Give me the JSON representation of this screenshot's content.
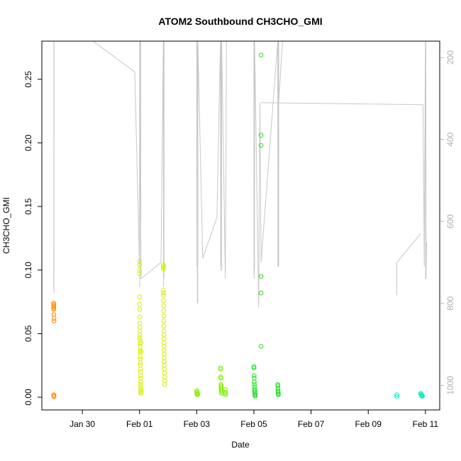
{
  "chart_data": {
    "type": "scatter",
    "title": "ATOM2 Southbound CH3CHO_GMI",
    "xlabel": "Date",
    "ylabel": "CH3CHO_GMI",
    "xlim": [
      "2017-01-28T14:00",
      "2017-02-11T12:00"
    ],
    "ylim": [
      -0.01,
      0.28
    ],
    "x_ticks": [
      {
        "date": "2017-01-30",
        "label": "Jan 30"
      },
      {
        "date": "2017-02-01",
        "label": "Feb 01"
      },
      {
        "date": "2017-02-03",
        "label": "Feb 03"
      },
      {
        "date": "2017-02-05",
        "label": "Feb 05"
      },
      {
        "date": "2017-02-07",
        "label": "Feb 07"
      },
      {
        "date": "2017-02-09",
        "label": "Feb 09"
      },
      {
        "date": "2017-02-11",
        "label": "Feb 11"
      }
    ],
    "y_ticks": [
      {
        "value": 0.0,
        "label": "0.00"
      },
      {
        "value": 0.05,
        "label": "0.05"
      },
      {
        "value": 0.1,
        "label": "0.10"
      },
      {
        "value": 0.15,
        "label": "0.15"
      },
      {
        "value": 0.2,
        "label": "0.20"
      },
      {
        "value": 0.25,
        "label": "0.25"
      }
    ],
    "right_axis": {
      "color": "#b0b0b0",
      "ylim_inverted": [
        1060,
        160
      ],
      "ticks": [
        {
          "value": 200,
          "label": "200"
        },
        {
          "value": 400,
          "label": "400"
        },
        {
          "value": 600,
          "label": "600"
        },
        {
          "value": 800,
          "label": "800"
        },
        {
          "value": 1000,
          "label": "1000"
        }
      ]
    },
    "pressure_trace": {
      "color": "#c8c8c8",
      "points": [
        [
          "2017-01-29T00:00",
          770
        ],
        [
          "2017-01-29T00:05",
          160
        ],
        [
          "2017-01-29T00:10",
          775
        ],
        [
          "2017-01-29T00:15",
          160
        ],
        [
          "2017-01-30T09:00",
          160
        ],
        [
          "2017-01-31T20:00",
          235
        ],
        [
          "2017-02-01T00:00",
          710
        ],
        [
          "2017-02-01T00:05",
          160
        ],
        [
          "2017-02-01T00:10",
          760
        ],
        [
          "2017-02-01T00:15",
          160
        ],
        [
          "2017-02-01T00:25",
          600
        ],
        [
          "2017-02-01T00:35",
          160
        ],
        [
          "2017-02-01T00:45",
          550
        ],
        [
          "2017-02-01T00:55",
          160
        ],
        [
          "2017-02-01T01:05",
          740
        ],
        [
          "2017-02-01T18:00",
          700
        ],
        [
          "2017-02-01T20:00",
          160
        ],
        [
          "2017-02-01T20:10",
          760
        ],
        [
          "2017-02-01T20:20",
          160
        ],
        [
          "2017-02-01T20:30",
          740
        ],
        [
          "2017-02-01T20:40",
          160
        ],
        [
          "2017-02-02T17:00",
          160
        ],
        [
          "2017-02-03T00:00",
          160
        ],
        [
          "2017-02-03T00:10",
          710
        ],
        [
          "2017-02-03T00:20",
          160
        ],
        [
          "2017-02-03T00:30",
          800
        ],
        [
          "2017-02-03T00:40",
          160
        ],
        [
          "2017-02-03T00:50",
          800
        ],
        [
          "2017-02-03T01:00",
          160
        ],
        [
          "2017-02-03T05:00",
          690
        ],
        [
          "2017-02-03T17:00",
          590
        ],
        [
          "2017-02-03T19:00",
          290
        ],
        [
          "2017-02-03T20:00",
          160
        ],
        [
          "2017-02-03T20:10",
          710
        ],
        [
          "2017-02-03T20:20",
          160
        ],
        [
          "2017-02-03T20:30",
          720
        ],
        [
          "2017-02-03T20:40",
          160
        ],
        [
          "2017-02-03T20:50",
          720
        ],
        [
          "2017-02-03T21:00",
          160
        ],
        [
          "2017-02-04T00:00",
          740
        ],
        [
          "2017-02-04T01:00",
          160
        ],
        [
          "2017-02-05T00:00",
          160
        ],
        [
          "2017-02-05T00:05",
          730
        ],
        [
          "2017-02-05T00:10",
          160
        ],
        [
          "2017-02-05T00:15",
          740
        ],
        [
          "2017-02-05T00:20",
          160
        ],
        [
          "2017-02-05T00:25",
          710
        ],
        [
          "2017-02-05T00:30",
          720
        ],
        [
          "2017-02-05T00:35",
          160
        ],
        [
          "2017-02-05T04:00",
          810
        ],
        [
          "2017-02-05T05:00",
          310
        ],
        [
          "2017-02-05T06:00",
          700
        ],
        [
          "2017-02-05T20:00",
          160
        ],
        [
          "2017-02-05T20:10",
          710
        ],
        [
          "2017-02-05T20:20",
          160
        ],
        [
          "2017-02-05T20:30",
          710
        ],
        [
          "2017-02-05T20:40",
          160
        ],
        [
          "2017-02-05T20:50",
          710
        ],
        [
          "2017-02-05T20:50",
          160
        ],
        [
          "2017-02-05T20:50",
          310
        ],
        [
          "2017-02-06T00:00",
          160
        ]
      ]
    },
    "pressure_trace_2": {
      "color": "#c8c8c8",
      "points": [
        [
          "2017-02-05T06:00",
          310
        ],
        [
          "2017-02-10T22:00",
          315
        ],
        [
          "2017-02-10T23:00",
          710
        ],
        [
          "2017-02-11T00:00",
          160
        ],
        [
          "2017-02-11T00:10",
          740
        ],
        [
          "2017-02-11T00:20",
          160
        ],
        [
          "2017-02-11T00:30",
          740
        ],
        [
          "2017-02-11T01:00",
          650
        ]
      ]
    },
    "pressure_trace_3": {
      "color": "#c8c8c8",
      "points": [
        [
          "2017-02-10T00:00",
          780
        ],
        [
          "2017-02-10T00:00",
          700
        ],
        [
          "2017-02-10T20:00",
          630
        ]
      ]
    },
    "series": [
      {
        "color": "#ff8c00",
        "points": [
          [
            "2017-01-29T00:00",
            0.074
          ],
          [
            "2017-01-29T00:00",
            0.073
          ],
          [
            "2017-01-29T00:00",
            0.072
          ],
          [
            "2017-01-29T00:00",
            0.071
          ],
          [
            "2017-01-29T00:00",
            0.07
          ],
          [
            "2017-01-29T00:05",
            0.069
          ],
          [
            "2017-01-29T00:05",
            0.065
          ],
          [
            "2017-01-29T00:10",
            0.062
          ],
          [
            "2017-01-29T00:10",
            0.06
          ],
          [
            "2017-01-29T00:00",
            0.002
          ],
          [
            "2017-01-29T00:05",
            0.001
          ],
          [
            "2017-01-29T00:10",
            0.0005
          ]
        ]
      },
      {
        "color": "#d4f000",
        "points": [
          [
            "2017-02-01T00:00",
            0.107
          ],
          [
            "2017-02-01T00:00",
            0.104
          ],
          [
            "2017-02-01T00:00",
            0.1
          ],
          [
            "2017-02-01T00:00",
            0.097
          ],
          [
            "2017-02-01T00:00",
            0.079
          ],
          [
            "2017-02-01T00:05",
            0.073
          ],
          [
            "2017-02-01T00:05",
            0.069
          ],
          [
            "2017-02-01T00:10",
            0.063
          ],
          [
            "2017-02-01T00:10",
            0.058
          ],
          [
            "2017-02-01T00:15",
            0.055
          ],
          [
            "2017-02-01T00:15",
            0.052
          ],
          [
            "2017-02-01T00:20",
            0.049
          ],
          [
            "2017-02-01T00:20",
            0.047
          ],
          [
            "2017-02-01T00:25",
            0.045
          ],
          [
            "2017-02-01T00:25",
            0.042
          ],
          [
            "2017-02-01T00:30",
            0.04
          ],
          [
            "2017-02-01T00:30",
            0.037
          ],
          [
            "2017-02-01T00:35",
            0.035
          ],
          [
            "2017-02-01T00:35",
            0.032
          ],
          [
            "2017-02-01T00:40",
            0.03
          ],
          [
            "2017-02-01T00:40",
            0.027
          ],
          [
            "2017-02-01T00:45",
            0.025
          ],
          [
            "2017-02-01T00:45",
            0.022
          ],
          [
            "2017-02-01T00:50",
            0.02
          ],
          [
            "2017-02-01T00:50",
            0.017
          ],
          [
            "2017-02-01T00:55",
            0.015
          ],
          [
            "2017-02-01T00:55",
            0.012
          ],
          [
            "2017-02-01T01:00",
            0.01
          ],
          [
            "2017-02-01T01:00",
            0.008
          ],
          [
            "2017-02-01T01:05",
            0.006
          ],
          [
            "2017-02-01T01:05",
            0.005
          ],
          [
            "2017-02-01T01:10",
            0.004
          ],
          [
            "2017-02-01T01:10",
            0.003
          ],
          [
            "2017-02-01T01:15",
            0.043
          ],
          [
            "2017-02-01T01:15",
            0.036
          ],
          [
            "2017-02-01T20:00",
            0.104
          ],
          [
            "2017-02-01T20:00",
            0.103
          ],
          [
            "2017-02-01T20:05",
            0.102
          ],
          [
            "2017-02-01T20:05",
            0.101
          ],
          [
            "2017-02-01T20:00",
            0.084
          ],
          [
            "2017-02-01T20:05",
            0.082
          ],
          [
            "2017-02-01T20:10",
            0.08
          ],
          [
            "2017-02-01T20:10",
            0.076
          ],
          [
            "2017-02-01T20:15",
            0.072
          ],
          [
            "2017-02-01T20:15",
            0.068
          ],
          [
            "2017-02-01T20:20",
            0.064
          ],
          [
            "2017-02-01T20:20",
            0.06
          ],
          [
            "2017-02-01T20:25",
            0.056
          ],
          [
            "2017-02-01T20:25",
            0.052
          ],
          [
            "2017-02-01T20:30",
            0.049
          ],
          [
            "2017-02-01T20:30",
            0.046
          ],
          [
            "2017-02-01T20:35",
            0.043
          ],
          [
            "2017-02-01T20:35",
            0.04
          ],
          [
            "2017-02-01T20:40",
            0.037
          ],
          [
            "2017-02-01T20:40",
            0.034
          ],
          [
            "2017-02-01T20:45",
            0.031
          ],
          [
            "2017-02-01T20:45",
            0.028
          ],
          [
            "2017-02-01T20:50",
            0.025
          ],
          [
            "2017-02-01T20:50",
            0.022
          ],
          [
            "2017-02-01T20:55",
            0.019
          ],
          [
            "2017-02-01T20:55",
            0.016
          ],
          [
            "2017-02-01T21:00",
            0.013
          ],
          [
            "2017-02-01T21:00",
            0.01
          ]
        ]
      },
      {
        "color": "#80f000",
        "points": [
          [
            "2017-02-03T00:00",
            0.005
          ],
          [
            "2017-02-03T00:05",
            0.004
          ],
          [
            "2017-02-03T00:10",
            0.004
          ],
          [
            "2017-02-03T00:15",
            0.003
          ],
          [
            "2017-02-03T00:20",
            0.003
          ],
          [
            "2017-02-03T00:25",
            0.002
          ],
          [
            "2017-02-03T00:30",
            0.002
          ],
          [
            "2017-02-03T00:35",
            0.003
          ],
          [
            "2017-02-03T00:40",
            0.002
          ],
          [
            "2017-02-03T00:45",
            0.003
          ],
          [
            "2017-02-03T20:00",
            0.023
          ],
          [
            "2017-02-03T20:05",
            0.022
          ],
          [
            "2017-02-03T20:10",
            0.016
          ],
          [
            "2017-02-03T20:15",
            0.015
          ],
          [
            "2017-02-03T20:20",
            0.01
          ],
          [
            "2017-02-03T20:25",
            0.009
          ],
          [
            "2017-02-03T20:30",
            0.008
          ],
          [
            "2017-02-03T20:35",
            0.007
          ],
          [
            "2017-02-03T20:40",
            0.006
          ],
          [
            "2017-02-03T20:45",
            0.005
          ],
          [
            "2017-02-03T20:50",
            0.004
          ],
          [
            "2017-02-03T20:55",
            0.003
          ],
          [
            "2017-02-04T00:00",
            0.006
          ],
          [
            "2017-02-04T00:05",
            0.004
          ],
          [
            "2017-02-04T00:10",
            0.003
          ],
          [
            "2017-02-04T00:15",
            0.002
          ]
        ]
      },
      {
        "color": "#20e020",
        "points": [
          [
            "2017-02-05T06:00",
            0.269
          ],
          [
            "2017-02-05T06:00",
            0.206
          ],
          [
            "2017-02-05T06:00",
            0.198
          ],
          [
            "2017-02-05T06:00",
            0.095
          ],
          [
            "2017-02-05T06:00",
            0.082
          ],
          [
            "2017-02-05T06:00",
            0.04
          ],
          [
            "2017-02-05T00:00",
            0.024
          ],
          [
            "2017-02-05T00:05",
            0.023
          ],
          [
            "2017-02-05T00:10",
            0.017
          ],
          [
            "2017-02-05T00:15",
            0.015
          ],
          [
            "2017-02-05T00:20",
            0.012
          ],
          [
            "2017-02-05T00:25",
            0.01
          ],
          [
            "2017-02-05T00:30",
            0.008
          ],
          [
            "2017-02-05T00:35",
            0.006
          ],
          [
            "2017-02-05T00:40",
            0.005
          ],
          [
            "2017-02-05T00:45",
            0.004
          ],
          [
            "2017-02-05T00:50",
            0.003
          ],
          [
            "2017-02-05T00:55",
            0.002
          ],
          [
            "2017-02-05T01:00",
            0.001
          ],
          [
            "2017-02-05T01:05",
            0.002
          ],
          [
            "2017-02-05T01:10",
            0.001
          ],
          [
            "2017-02-05T20:00",
            0.01
          ],
          [
            "2017-02-05T20:05",
            0.009
          ],
          [
            "2017-02-05T20:10",
            0.007
          ],
          [
            "2017-02-05T20:15",
            0.005
          ],
          [
            "2017-02-05T20:20",
            0.004
          ],
          [
            "2017-02-05T20:25",
            0.003
          ],
          [
            "2017-02-05T20:30",
            0.002
          ],
          [
            "2017-02-05T20:35",
            0.002
          ]
        ]
      },
      {
        "color": "#00f0c0",
        "points": [
          [
            "2017-02-10T00:00",
            0.002
          ],
          [
            "2017-02-10T00:00",
            0.0005
          ],
          [
            "2017-02-10T20:00",
            0.003
          ],
          [
            "2017-02-10T20:10",
            0.003
          ],
          [
            "2017-02-10T20:20",
            0.002
          ],
          [
            "2017-02-10T20:30",
            0.002
          ],
          [
            "2017-02-10T20:40",
            0.002
          ],
          [
            "2017-02-10T20:50",
            0.001
          ],
          [
            "2017-02-10T21:00",
            0.001
          ],
          [
            "2017-02-10T21:10",
            0.0015
          ],
          [
            "2017-02-10T21:20",
            0.001
          ],
          [
            "2017-02-10T21:30",
            0.0008
          ]
        ]
      }
    ]
  }
}
